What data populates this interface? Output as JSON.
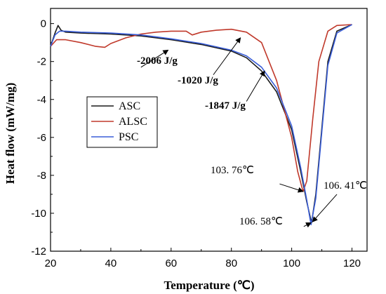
{
  "chart_data": {
    "type": "line",
    "xlabel": "Temperature (℃)",
    "ylabel": "Heat flow (mW/mg)",
    "xlim": [
      20,
      125
    ],
    "ylim": [
      -12,
      0.8
    ],
    "xticks": [
      20,
      40,
      60,
      80,
      100,
      120
    ],
    "yticks": [
      0,
      -2,
      -4,
      -6,
      -8,
      -10,
      -12
    ],
    "xtick_labels": [
      "20",
      "40",
      "60",
      "80",
      "100",
      "120"
    ],
    "ytick_labels": [
      "0",
      "-2",
      "-4",
      "-6",
      "-8",
      "-10",
      "-12"
    ],
    "grid": false,
    "legend_position": "upper-left",
    "series": [
      {
        "name": "ASC",
        "color": "#1a1a1a",
        "x": [
          20,
          21.5,
          22.5,
          23.5,
          25,
          30,
          40,
          50,
          60,
          70,
          80,
          85,
          90,
          95,
          100,
          103,
          105,
          106.58,
          108,
          110,
          112,
          115,
          120
        ],
        "y": [
          -1.2,
          -0.5,
          -0.1,
          -0.35,
          -0.45,
          -0.5,
          -0.55,
          -0.65,
          -0.85,
          -1.1,
          -1.45,
          -1.8,
          -2.5,
          -3.6,
          -5.6,
          -7.8,
          -9.4,
          -10.5,
          -9.0,
          -5.5,
          -2.0,
          -0.4,
          -0.05
        ]
      },
      {
        "name": "ALSC",
        "color": "#c0392b",
        "x": [
          20,
          22,
          25,
          30,
          35,
          38,
          40,
          45,
          50,
          55,
          60,
          65,
          67,
          70,
          75,
          80,
          85,
          90,
          95,
          100,
          102,
          103.76,
          105,
          107,
          109,
          112,
          115,
          120
        ],
        "y": [
          -1.2,
          -0.85,
          -0.85,
          -1.0,
          -1.2,
          -1.25,
          -1.05,
          -0.75,
          -0.55,
          -0.45,
          -0.4,
          -0.4,
          -0.6,
          -0.45,
          -0.35,
          -0.3,
          -0.45,
          -1.0,
          -3.0,
          -6.0,
          -7.8,
          -8.85,
          -8.3,
          -5.0,
          -2.0,
          -0.4,
          -0.1,
          -0.05
        ]
      },
      {
        "name": "PSC",
        "color": "#3a5ed8",
        "x": [
          20,
          21.5,
          23,
          25,
          30,
          40,
          50,
          60,
          70,
          80,
          85,
          90,
          95,
          100,
          103,
          105,
          106.41,
          108,
          110,
          112,
          115,
          120
        ],
        "y": [
          -1.2,
          -0.6,
          -0.4,
          -0.4,
          -0.45,
          -0.5,
          -0.6,
          -0.8,
          -1.05,
          -1.4,
          -1.7,
          -2.3,
          -3.4,
          -5.4,
          -7.6,
          -9.3,
          -10.6,
          -9.2,
          -5.7,
          -2.2,
          -0.5,
          -0.05
        ]
      }
    ],
    "annotations": {
      "enthalpy": [
        "-2006 J/g",
        "-1020 J/g",
        "-1847 J/g"
      ],
      "peaks": [
        "103. 76℃",
        "106. 41℃",
        "106. 58℃"
      ]
    }
  }
}
